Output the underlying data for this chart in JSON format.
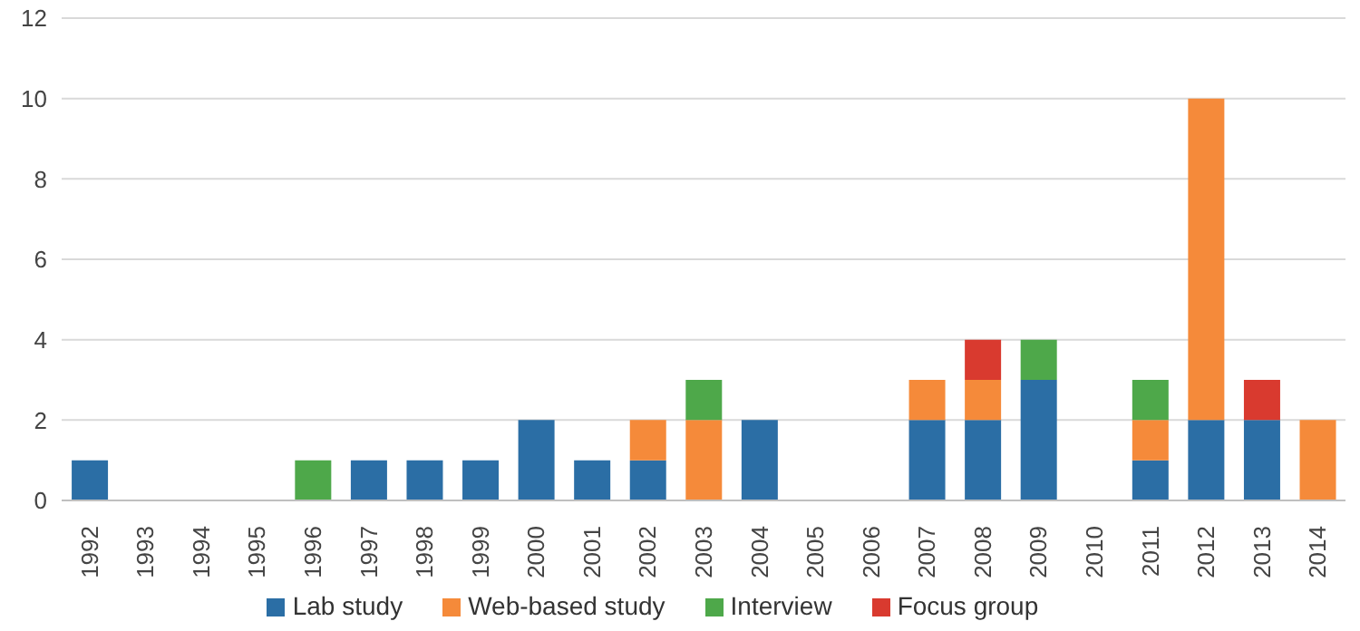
{
  "chart_data": {
    "type": "bar",
    "stacked": true,
    "categories": [
      "1992",
      "1993",
      "1994",
      "1995",
      "1996",
      "1997",
      "1998",
      "1999",
      "2000",
      "2001",
      "2002",
      "2003",
      "2004",
      "2005",
      "2006",
      "2007",
      "2008",
      "2009",
      "2010",
      "2011",
      "2012",
      "2013",
      "2014"
    ],
    "series": [
      {
        "name": "Lab study",
        "color": "#2b6ea5",
        "values": [
          1,
          0,
          0,
          0,
          0,
          1,
          1,
          1,
          2,
          1,
          1,
          0,
          2,
          0,
          0,
          2,
          2,
          3,
          0,
          1,
          2,
          2,
          0
        ]
      },
      {
        "name": "Web-based study",
        "color": "#f58a3a",
        "values": [
          0,
          0,
          0,
          0,
          0,
          0,
          0,
          0,
          0,
          0,
          1,
          2,
          0,
          0,
          0,
          1,
          1,
          0,
          0,
          1,
          8,
          0,
          2
        ]
      },
      {
        "name": "Interview",
        "color": "#4ea84a",
        "values": [
          0,
          0,
          0,
          0,
          1,
          0,
          0,
          0,
          0,
          0,
          0,
          1,
          0,
          0,
          0,
          0,
          0,
          1,
          0,
          1,
          0,
          0,
          0
        ]
      },
      {
        "name": "Focus group",
        "color": "#d93a2f",
        "values": [
          0,
          0,
          0,
          0,
          0,
          0,
          0,
          0,
          0,
          0,
          0,
          0,
          0,
          0,
          0,
          0,
          1,
          0,
          0,
          0,
          0,
          1,
          0
        ]
      }
    ],
    "ylim": [
      0,
      12
    ],
    "yticks": [
      0,
      2,
      4,
      6,
      8,
      10,
      12
    ],
    "grid": "y",
    "legend": "bottom"
  }
}
